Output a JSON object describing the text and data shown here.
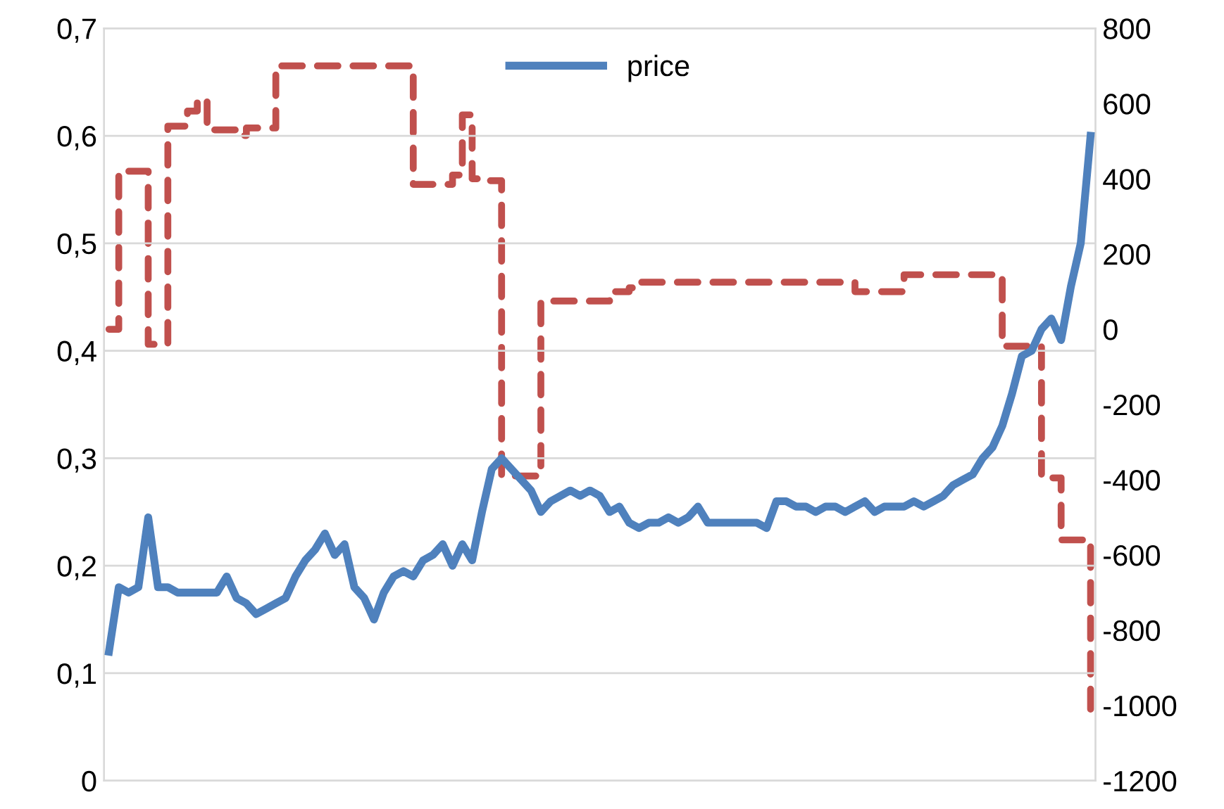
{
  "chart_data": {
    "type": "line",
    "categories": [
      null,
      null,
      null,
      null,
      null,
      null,
      null,
      null,
      null,
      null,
      null,
      null,
      null,
      null,
      null,
      null,
      null,
      null,
      null,
      null,
      null,
      null,
      null,
      null,
      null,
      null,
      null,
      null,
      null,
      null,
      null,
      null,
      null,
      null,
      null,
      null,
      null,
      null,
      null,
      null,
      null,
      null,
      null,
      null,
      null,
      null,
      null,
      null,
      null,
      null,
      null,
      null,
      null,
      null,
      null,
      null,
      null,
      null,
      null,
      null,
      null,
      null,
      null,
      null,
      null,
      null,
      null,
      null,
      null,
      null,
      null,
      null,
      null,
      null,
      null,
      null,
      null,
      null,
      null,
      null,
      null,
      null,
      null,
      null,
      null,
      null,
      null,
      null,
      null,
      null,
      null,
      null,
      null,
      null,
      null,
      null,
      null,
      null,
      null,
      null,
      null
    ],
    "series": [
      {
        "name": "price",
        "color": "#4f81bd",
        "line_style": "solid",
        "values": [
          0.12,
          0.18,
          0.175,
          0.18,
          0.245,
          0.18,
          0.18,
          0.175,
          0.175,
          0.175,
          0.175,
          0.175,
          0.19,
          0.17,
          0.165,
          0.155,
          0.16,
          0.165,
          0.17,
          0.19,
          0.205,
          0.215,
          0.23,
          0.21,
          0.22,
          0.18,
          0.17,
          0.15,
          0.175,
          0.19,
          0.195,
          0.19,
          0.205,
          0.21,
          0.22,
          0.2,
          0.22,
          0.205,
          0.25,
          0.29,
          0.3,
          0.29,
          0.28,
          0.27,
          0.25,
          0.26,
          0.265,
          0.27,
          0.265,
          0.27,
          0.265,
          0.25,
          0.255,
          0.24,
          0.235,
          0.24,
          0.24,
          0.245,
          0.24,
          0.245,
          0.255,
          0.24,
          0.24,
          0.24,
          0.24,
          0.24,
          0.24,
          0.235,
          0.26,
          0.26,
          0.255,
          0.255,
          0.25,
          0.255,
          0.255,
          0.25,
          0.255,
          0.26,
          0.25,
          0.255,
          0.255,
          0.255,
          0.26,
          0.255,
          0.26,
          0.265,
          0.275,
          0.28,
          0.285,
          0.3,
          0.31,
          0.33,
          0.36,
          0.395,
          0.4,
          0.42,
          0.43,
          0.41,
          0.46,
          0.5,
          0.6
        ]
      },
      {
        "type": "step",
        "axis": "y2",
        "color": "#c0504d",
        "line_style": "dashed",
        "values": [
          0,
          420,
          420,
          420,
          -40,
          -40,
          540,
          540,
          580,
          610,
          530,
          530,
          530,
          515,
          535,
          535,
          535,
          700,
          700,
          700,
          700,
          700,
          700,
          700,
          700,
          700,
          700,
          700,
          700,
          700,
          700,
          385,
          385,
          385,
          385,
          410,
          570,
          400,
          395,
          395,
          -390,
          -390,
          -390,
          -390,
          75,
          75,
          75,
          75,
          75,
          75,
          75,
          100,
          100,
          110,
          125,
          125,
          125,
          125,
          125,
          125,
          125,
          125,
          125,
          125,
          125,
          125,
          125,
          125,
          125,
          125,
          125,
          125,
          125,
          125,
          125,
          125,
          100,
          100,
          100,
          100,
          100,
          145,
          145,
          145,
          145,
          145,
          145,
          145,
          145,
          145,
          145,
          -45,
          -45,
          -45,
          -45,
          -395,
          -395,
          -560,
          -560,
          -560,
          -1010
        ]
      }
    ],
    "ylim": [
      0,
      0.7
    ],
    "yticks": [
      {
        "value": 0,
        "label": "0"
      },
      {
        "value": 0.1,
        "label": "0,1"
      },
      {
        "value": 0.2,
        "label": "0,2"
      },
      {
        "value": 0.3,
        "label": "0,3"
      },
      {
        "value": 0.4,
        "label": "0,4"
      },
      {
        "value": 0.5,
        "label": "0,5"
      },
      {
        "value": 0.6,
        "label": "0,6"
      },
      {
        "value": 0.7,
        "label": "0,7"
      }
    ],
    "y2lim": [
      -1200,
      800
    ],
    "y2ticks": [
      -1200,
      -1000,
      -800,
      -600,
      -400,
      -200,
      0,
      200,
      400,
      600,
      800
    ],
    "grid": "y",
    "legend": "top"
  }
}
